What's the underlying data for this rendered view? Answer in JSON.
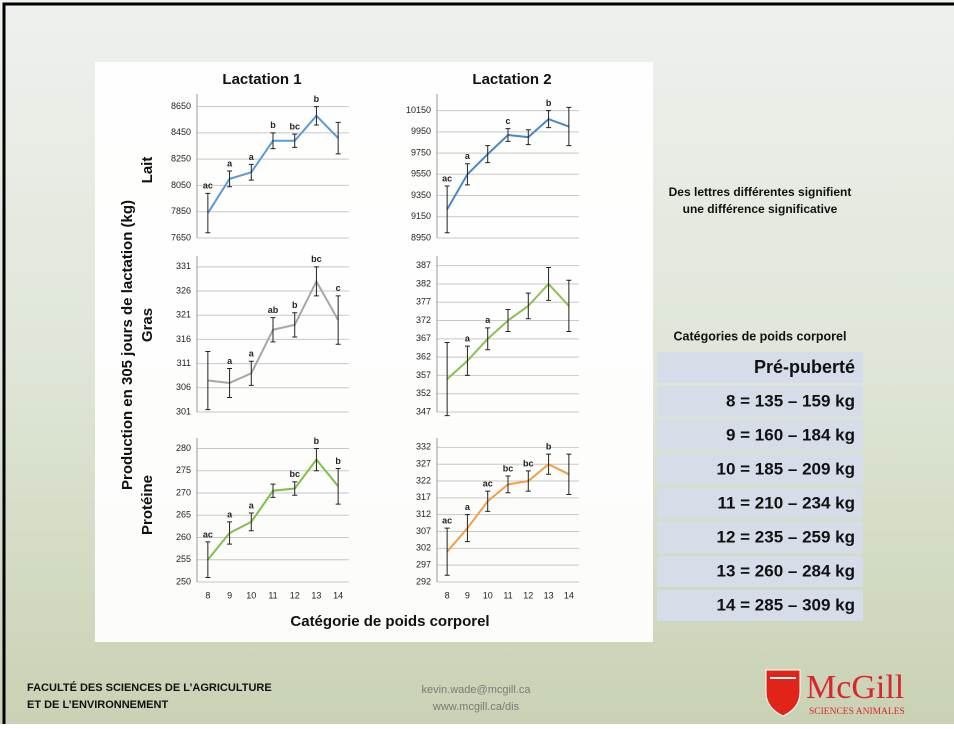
{
  "column_titles": [
    "Lactation 1",
    "Lactation 2"
  ],
  "y_axis_label": "Production en 305 jours de lactation (kg)",
  "row_labels": [
    "Lait",
    "Gras",
    "Protéine"
  ],
  "x_axis_label": "Catégorie de poids corporel",
  "categories": [
    8,
    9,
    10,
    11,
    12,
    13,
    14
  ],
  "chart_data": [
    {
      "type": "line",
      "color": "#5b9bd5",
      "ylim": [
        7650,
        8700
      ],
      "yticks": [
        7650,
        7850,
        8050,
        8250,
        8450,
        8650
      ],
      "values": [
        7840,
        8100,
        8150,
        8390,
        8390,
        8580,
        8410
      ],
      "errors": [
        150,
        60,
        60,
        60,
        50,
        70,
        120
      ],
      "annotations": [
        "ac",
        "a",
        "a",
        "b",
        "bc",
        "b",
        null
      ]
    },
    {
      "type": "line",
      "color": "#a6a6a6",
      "ylim": [
        301,
        332
      ],
      "yticks": [
        301,
        306,
        311,
        316,
        321,
        326,
        331
      ],
      "values": [
        307.5,
        307,
        309,
        318,
        319,
        328,
        320
      ],
      "errors": [
        6,
        3,
        2.5,
        2.5,
        2.5,
        3,
        5
      ],
      "annotations": [
        null,
        "a",
        "a",
        "ab",
        "b",
        "bc",
        "c"
      ]
    },
    {
      "type": "line",
      "color": "#7fbf4d",
      "ylim": [
        250,
        281
      ],
      "yticks": [
        250,
        255,
        260,
        265,
        270,
        275,
        280
      ],
      "values": [
        255,
        261,
        263.5,
        270.5,
        271,
        277.5,
        271.5
      ],
      "errors": [
        4,
        2.5,
        2,
        1.5,
        1.5,
        2.5,
        4
      ],
      "annotations": [
        "ac",
        "a",
        "a",
        null,
        "bc",
        "b",
        "b"
      ]
    },
    {
      "type": "line",
      "color": "#4a86c8",
      "ylim": [
        8950,
        10250
      ],
      "yticks": [
        8950,
        9150,
        9350,
        9550,
        9750,
        9950,
        10150
      ],
      "values": [
        9220,
        9550,
        9740,
        9920,
        9900,
        10070,
        10000
      ],
      "errors": [
        220,
        100,
        80,
        60,
        70,
        80,
        180
      ],
      "annotations": [
        "ac",
        "a",
        null,
        "c",
        null,
        "b",
        null
      ]
    },
    {
      "type": "line",
      "color": "#8cc152",
      "ylim": [
        347,
        388
      ],
      "yticks": [
        347,
        352,
        357,
        362,
        367,
        372,
        377,
        382,
        387
      ],
      "values": [
        356,
        361,
        367,
        372,
        376,
        382,
        376
      ],
      "errors": [
        10,
        4,
        3,
        3,
        3.5,
        4.5,
        7
      ],
      "annotations": [
        null,
        "a",
        "a",
        null,
        null,
        null,
        null
      ]
    },
    {
      "type": "line",
      "color": "#f4a041",
      "ylim": [
        292,
        333
      ],
      "yticks": [
        292,
        297,
        302,
        307,
        312,
        317,
        322,
        327,
        332
      ],
      "values": [
        301,
        308,
        316,
        321,
        322,
        327,
        324
      ],
      "errors": [
        7,
        4,
        3,
        2.5,
        3,
        3,
        6
      ],
      "annotations": [
        "ac",
        "a",
        "ac",
        "bc",
        "bc",
        "b",
        null
      ]
    }
  ],
  "note": [
    "Des lettres différentes signifient",
    "une différence significative"
  ],
  "table": {
    "title": "Catégories de poids corporel",
    "header": "Pré-puberté",
    "rows": [
      "8 = 135 – 159 kg",
      "9 = 160 – 184 kg",
      "10 = 185 – 209 kg",
      "11 = 210 – 234 kg",
      "12 = 235 – 259 kg",
      "13 = 260 – 284 kg",
      "14 = 285 – 309 kg"
    ]
  },
  "footer": {
    "faculty": [
      "FACULTÉ DES SCIENCES DE L’AGRICULTURE",
      "ET DE L’ENVIRONNEMENT"
    ],
    "email": "kevin.wade@mcgill.ca",
    "website": "www.mcgill.ca/dis",
    "logo": "McGill",
    "logo_subtitle": "SCIENCES ANIMALES"
  }
}
